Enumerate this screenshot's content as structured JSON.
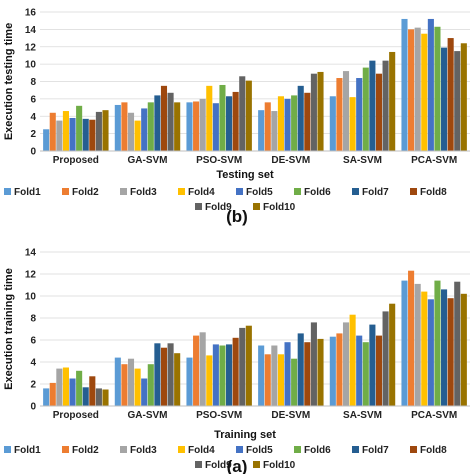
{
  "chart_data": [
    {
      "type": "bar",
      "panel_label": "(b)",
      "xlabel": "Testing set",
      "ylabel": "Execution testing time",
      "ylim": [
        0,
        16
      ],
      "yticks": [
        0,
        2,
        4,
        6,
        8,
        10,
        12,
        14,
        16
      ],
      "grid": true,
      "legend_position": "bottom",
      "categories": [
        "Proposed",
        "GA-SVM",
        "PSO-SVM",
        "DE-SVM",
        "SA-SVM",
        "PCA-SVM"
      ],
      "series": [
        {
          "name": "Fold1",
          "values": [
            2.5,
            5.3,
            5.6,
            4.7,
            6.3,
            15.2
          ]
        },
        {
          "name": "Fold2",
          "values": [
            4.4,
            5.6,
            5.7,
            5.6,
            8.4,
            14.0
          ]
        },
        {
          "name": "Fold3",
          "values": [
            3.5,
            4.4,
            6.0,
            4.6,
            9.2,
            14.2
          ]
        },
        {
          "name": "Fold4",
          "values": [
            4.6,
            3.5,
            7.5,
            6.3,
            6.2,
            13.5
          ]
        },
        {
          "name": "Fold5",
          "values": [
            3.8,
            4.9,
            5.5,
            6.0,
            8.4,
            15.2
          ]
        },
        {
          "name": "Fold6",
          "values": [
            5.2,
            5.6,
            7.6,
            6.4,
            9.6,
            14.3
          ]
        },
        {
          "name": "Fold7",
          "values": [
            3.7,
            6.4,
            6.3,
            7.5,
            10.4,
            11.9
          ]
        },
        {
          "name": "Fold8",
          "values": [
            3.6,
            7.5,
            6.8,
            6.7,
            8.9,
            13.0
          ]
        },
        {
          "name": "Fold9",
          "values": [
            4.5,
            6.7,
            8.6,
            8.9,
            10.4,
            11.5
          ]
        },
        {
          "name": "Fold10",
          "values": [
            4.7,
            5.6,
            8.1,
            9.1,
            11.4,
            12.4
          ]
        }
      ]
    },
    {
      "type": "bar",
      "panel_label": "(a)",
      "xlabel": "Training set",
      "ylabel": "Execution training time",
      "ylim": [
        0,
        14
      ],
      "yticks": [
        0,
        2,
        4,
        6,
        8,
        10,
        12,
        14
      ],
      "grid": true,
      "legend_position": "bottom",
      "categories": [
        "Proposed",
        "GA-SVM",
        "PSO-SVM",
        "DE-SVM",
        "SA-SVM",
        "PCA-SVM"
      ],
      "series": [
        {
          "name": "Fold1",
          "values": [
            1.6,
            4.4,
            4.4,
            5.5,
            6.3,
            11.4
          ]
        },
        {
          "name": "Fold2",
          "values": [
            2.1,
            3.8,
            6.4,
            4.7,
            6.6,
            12.3
          ]
        },
        {
          "name": "Fold3",
          "values": [
            3.4,
            4.3,
            6.7,
            5.5,
            7.6,
            11.1
          ]
        },
        {
          "name": "Fold4",
          "values": [
            3.5,
            3.4,
            4.6,
            4.7,
            8.3,
            10.4
          ]
        },
        {
          "name": "Fold5",
          "values": [
            2.5,
            2.5,
            5.6,
            5.8,
            6.4,
            9.7
          ]
        },
        {
          "name": "Fold6",
          "values": [
            3.2,
            3.8,
            5.5,
            4.3,
            5.8,
            11.4
          ]
        },
        {
          "name": "Fold7",
          "values": [
            1.7,
            5.7,
            5.6,
            6.6,
            7.4,
            10.6
          ]
        },
        {
          "name": "Fold8",
          "values": [
            2.7,
            5.3,
            6.2,
            5.8,
            6.4,
            9.8
          ]
        },
        {
          "name": "Fold9",
          "values": [
            1.6,
            5.7,
            7.1,
            7.6,
            8.6,
            11.3
          ]
        },
        {
          "name": "Fold10",
          "values": [
            1.5,
            4.8,
            7.3,
            6.1,
            9.3,
            10.2
          ]
        }
      ]
    }
  ],
  "colors": [
    "#5b9bd5",
    "#ed7d31",
    "#a5a5a5",
    "#ffc000",
    "#4472c4",
    "#70ad47",
    "#255e91",
    "#9e480e",
    "#636363",
    "#997300"
  ]
}
